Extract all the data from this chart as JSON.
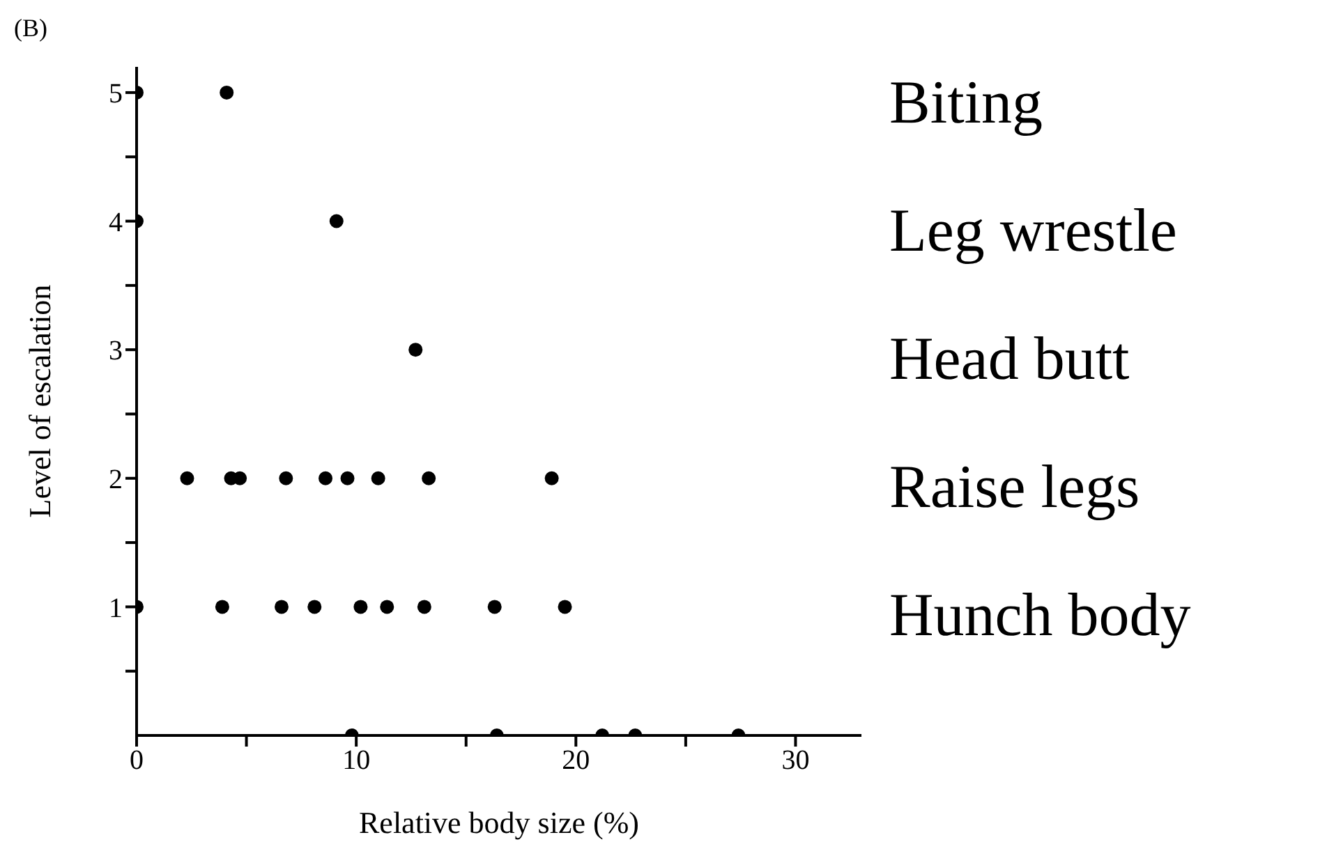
{
  "chart_data": {
    "type": "scatter",
    "xlabel": "Relative body size (%)",
    "ylabel": "Level of escalation",
    "annotations": [
      "(B)",
      "Biting",
      "Leg wrestle",
      "Head butt",
      "Raise legs",
      "Hunch body"
    ],
    "x": [
      0,
      4.1,
      0,
      9.1,
      12.7,
      2.3,
      4.3,
      4.7,
      6.8,
      8.6,
      9.6,
      11.0,
      13.3,
      18.9,
      0,
      3.9,
      6.6,
      8.1,
      10.2,
      11.4,
      13.1,
      16.3,
      19.5,
      9.8,
      16.4,
      21.2,
      22.7,
      27.4
    ],
    "series": [
      {
        "color": "#000000",
        "values": [
          5,
          5,
          4,
          4,
          3,
          2,
          2,
          2,
          2,
          2,
          2,
          2,
          2,
          2,
          1,
          1,
          1,
          1,
          1,
          1,
          1,
          1,
          1,
          0,
          0,
          0,
          0,
          0
        ]
      }
    ],
    "marker": "circle",
    "tick_labels": "xy",
    "xlim": [
      0,
      33
    ],
    "xticks": [
      0,
      {
        "value": 5,
        "label": null
      },
      10,
      {
        "value": 15,
        "label": null
      },
      20,
      {
        "value": 25,
        "label": null
      },
      30
    ],
    "ylim": [
      0,
      5.2
    ],
    "yticks": [
      {
        "value": 0.5,
        "label": null
      },
      1,
      {
        "value": 1.5,
        "label": null
      },
      2,
      {
        "value": 2.5,
        "label": null
      },
      3,
      {
        "value": 3.5,
        "label": null
      },
      4,
      {
        "value": 4.5,
        "label": null
      },
      5
    ]
  }
}
